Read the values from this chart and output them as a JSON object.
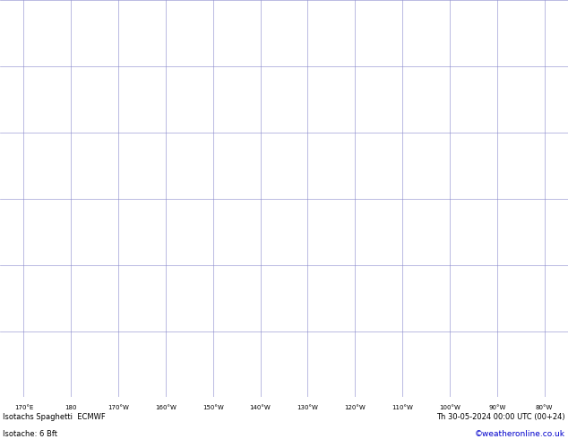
{
  "title_left": "Isotachs Spaghetti  ECMWF",
  "title_right": "Th 30-05-2024 00:00 UTC (00+24)",
  "subtitle_left": "Isotache: 6 Bft",
  "subtitle_right": "©weatheronline.co.uk",
  "land_color": "#aaddaa",
  "ocean_color": "#f0f0f0",
  "grid_color": "#8888cc",
  "coast_color": "#888888",
  "text_color": "#000000",
  "blue_text_color": "#0000cc",
  "fig_width": 6.34,
  "fig_height": 4.9,
  "dpi": 100,
  "bottom_bar_color": "#ffffff",
  "lon_min": 165.0,
  "lon_max": 285.0,
  "lat_min": -15.0,
  "lat_max": 75.0,
  "x_tick_labels": [
    "170°E",
    "180",
    "170°W",
    "160°W",
    "150°W",
    "140°W",
    "130°W",
    "120°W",
    "110°W",
    "100°W",
    "90°W",
    "80°W"
  ],
  "x_tick_lons": [
    170,
    180,
    190,
    200,
    210,
    220,
    230,
    240,
    250,
    260,
    270,
    280
  ],
  "y_tick_lats": [
    75,
    60,
    45,
    30,
    15,
    0,
    -15
  ],
  "spaghetti_colors": [
    "#ff0000",
    "#ff6600",
    "#ffaa00",
    "#ffff00",
    "#aaff00",
    "#00ff00",
    "#00ffaa",
    "#00ffff",
    "#0088ff",
    "#0000ff",
    "#8800ff",
    "#ff00ff",
    "#ff0088",
    "#884400",
    "#008844",
    "#440088",
    "#ff4444",
    "#44ff44",
    "#4444ff",
    "#ffaa44",
    "#44ffaa",
    "#aa44ff",
    "#ff44aa",
    "#aaaaff",
    "#ffaaaa",
    "#aaffaa",
    "#888800",
    "#008888",
    "#880088",
    "#444444",
    "#000000",
    "#cc6600",
    "#006600",
    "#660066",
    "#cc0000"
  ]
}
